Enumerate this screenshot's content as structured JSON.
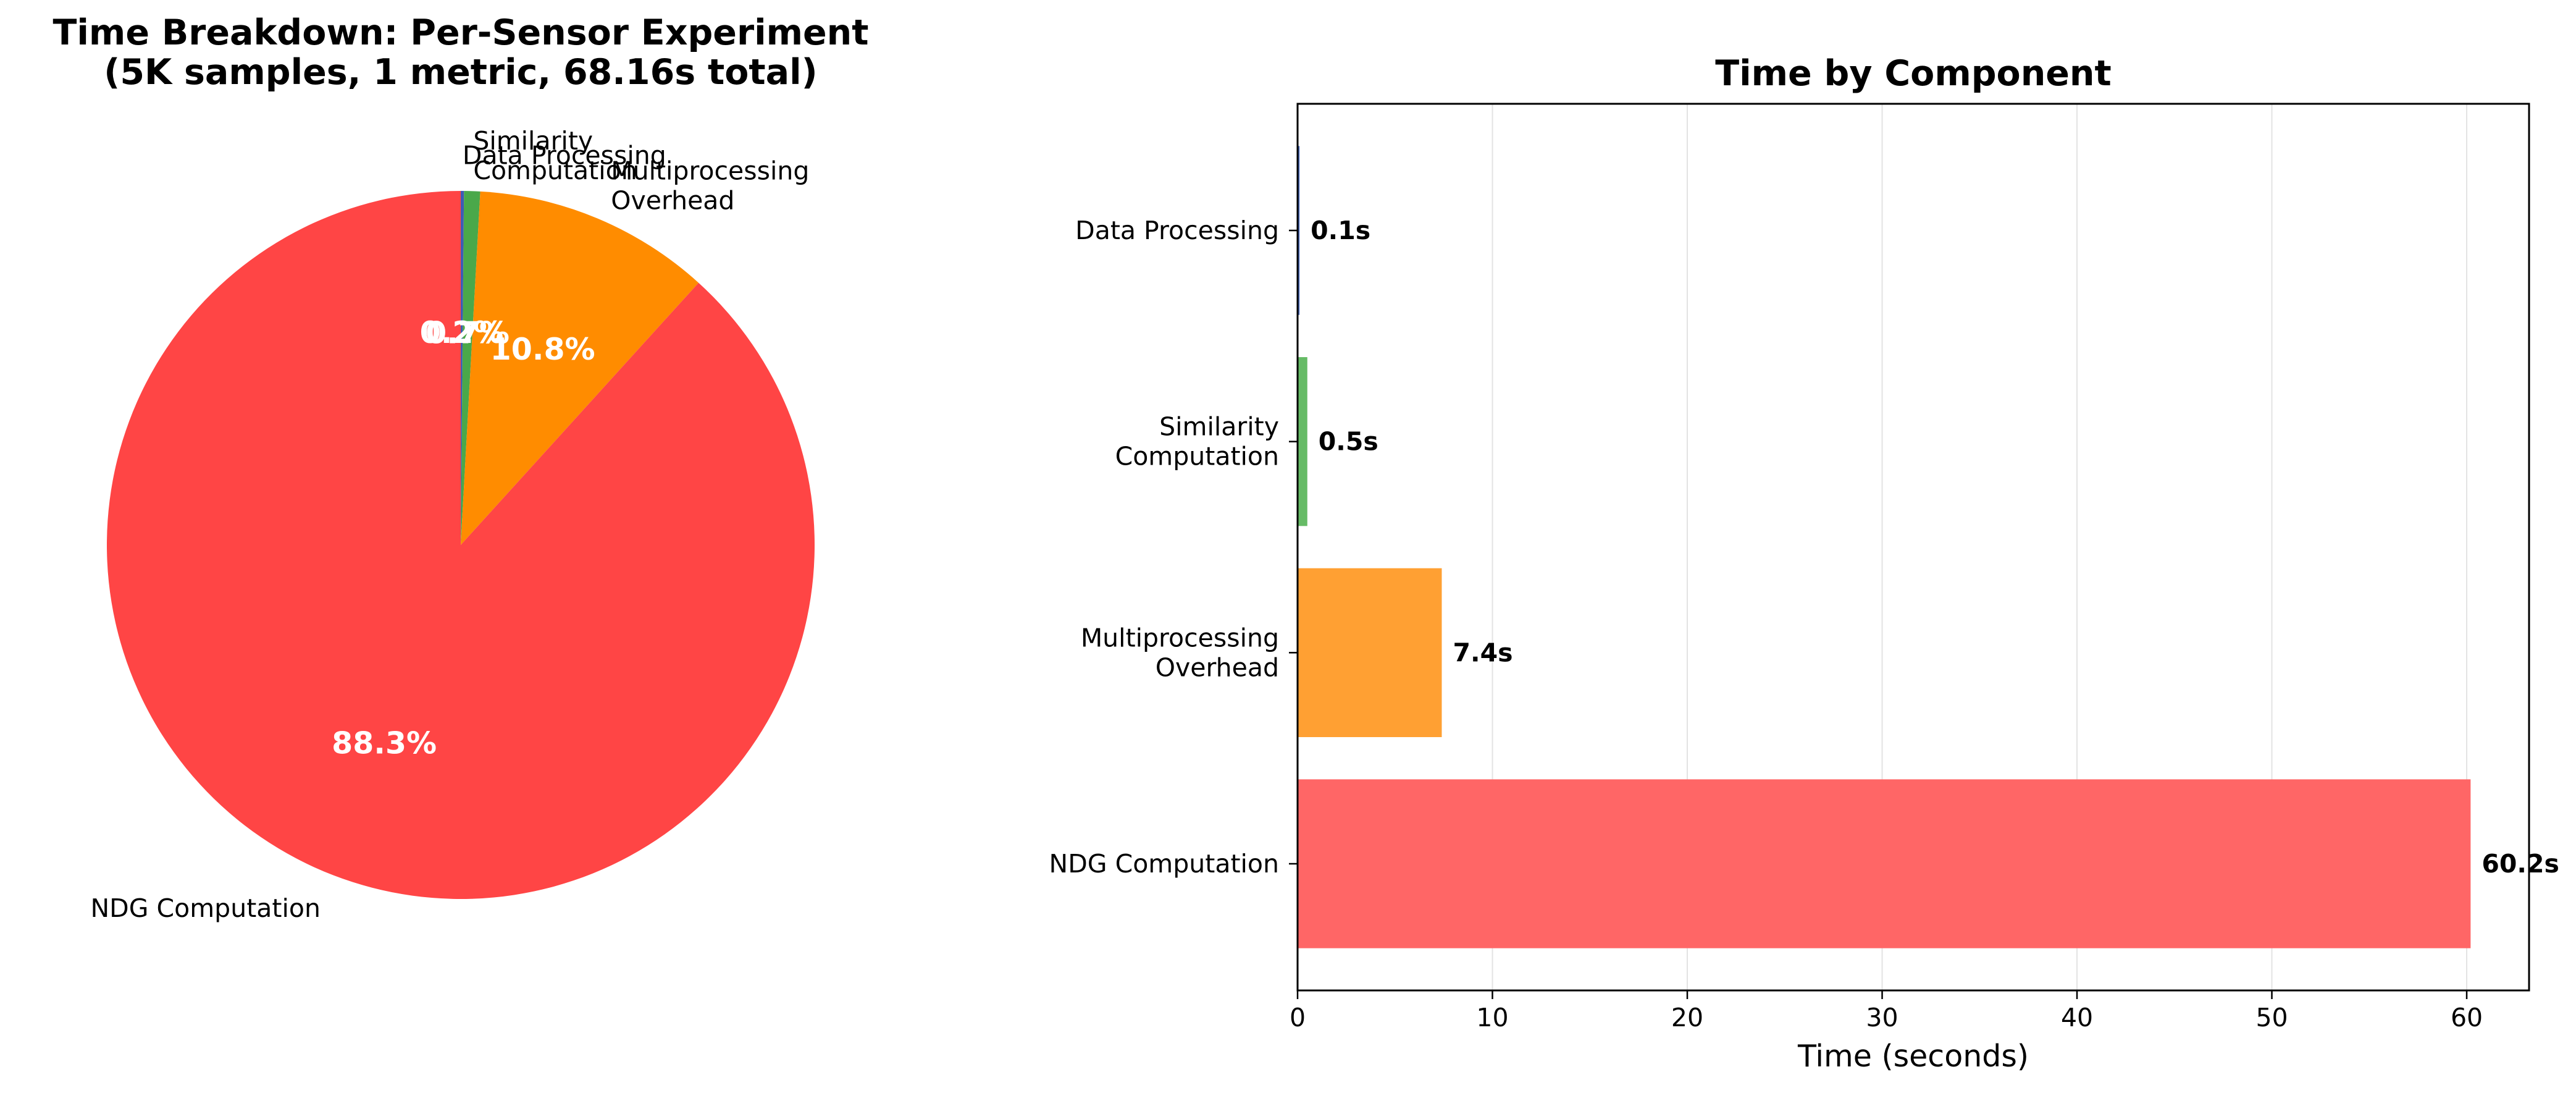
{
  "chart_data": [
    {
      "type": "pie",
      "title": "Time Breakdown: Per-Sensor Experiment\n(5K samples, 1 metric, 68.16s total)",
      "slices": [
        {
          "label": "Data Processing",
          "value": 0.1,
          "percent_label": "0.2%",
          "color": "#3f5bb5"
        },
        {
          "label": "Similarity\nComputation",
          "value": 0.5,
          "percent_label": "0.7%",
          "color": "#4aa84a"
        },
        {
          "label": "Multiprocessing\nOverhead",
          "value": 7.4,
          "percent_label": "10.8%",
          "color": "#ff8c00"
        },
        {
          "label": "NDG Computation",
          "value": 60.2,
          "percent_label": "88.3%",
          "color": "#ff4545"
        }
      ]
    },
    {
      "type": "bar",
      "orientation": "horizontal",
      "title": "Time by Component",
      "xlabel": "Time (seconds)",
      "ylabel": "",
      "xlim": [
        0,
        63.2
      ],
      "xticks": [
        0,
        10,
        20,
        30,
        40,
        50,
        60
      ],
      "grid": "x",
      "categories": [
        "NDG Computation",
        "Multiprocessing\nOverhead",
        "Similarity\nComputation",
        "Data Processing"
      ],
      "values": [
        60.2,
        7.4,
        0.5,
        0.1
      ],
      "value_labels": [
        "60.2s",
        "7.4s",
        "0.5s",
        "0.1s"
      ],
      "colors": [
        "#ff6666",
        "#ffa033",
        "#66bb66",
        "#4466bb"
      ]
    }
  ]
}
